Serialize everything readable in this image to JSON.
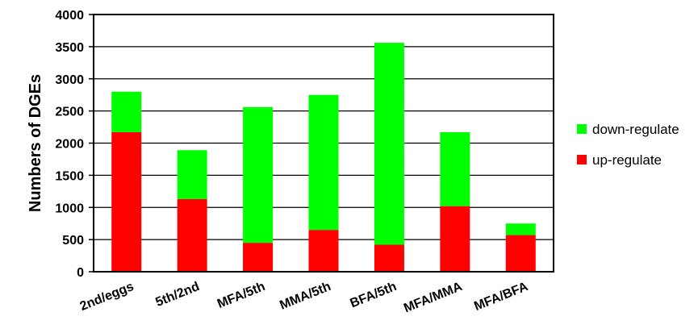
{
  "chart_data": {
    "type": "bar",
    "stacked": true,
    "ylabel": "Numbers of DGEs",
    "xlabel": "",
    "ylim": [
      0,
      4000
    ],
    "y_ticks": [
      0,
      500,
      1000,
      1500,
      2000,
      2500,
      3000,
      3500,
      4000
    ],
    "grid": true,
    "legend_position": "right",
    "categories": [
      "2nd/eggs",
      "5th/2nd",
      "MFA/5th",
      "MMA/5th",
      "BFA/5th",
      "MFA/MMA",
      "MFA/BFA"
    ],
    "series": [
      {
        "name": "up-regulate",
        "color": "#ff0000",
        "values": [
          2170,
          1130,
          450,
          650,
          420,
          1020,
          570
        ]
      },
      {
        "name": "down-regulate",
        "color": "#00ff00",
        "values": [
          630,
          760,
          2110,
          2100,
          3140,
          1150,
          180
        ]
      }
    ],
    "legend": [
      {
        "name": "down-regulate",
        "color": "#00ff00"
      },
      {
        "name": "up-regulate",
        "color": "#ff0000"
      }
    ]
  }
}
